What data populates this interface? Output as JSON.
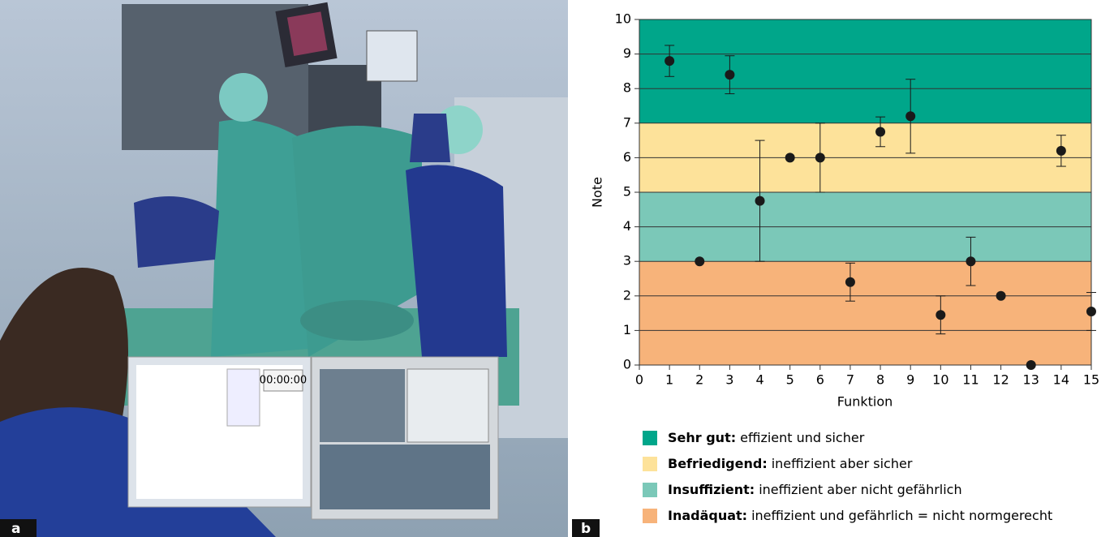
{
  "photo": {
    "panel_label": "a",
    "screen_time": "00:00:00"
  },
  "chart_data": {
    "type": "scatter",
    "panel_label": "b",
    "x_label": "Funktion",
    "y_label": "Note",
    "x": [
      1,
      2,
      3,
      4,
      5,
      6,
      7,
      8,
      9,
      10,
      11,
      12,
      13,
      14,
      15
    ],
    "values": [
      8.8,
      3,
      8.4,
      4.75,
      6,
      6,
      2.4,
      6.75,
      7.2,
      1.45,
      3,
      2,
      0,
      6.2,
      1.55
    ],
    "errors": [
      0.45,
      null,
      0.55,
      1.75,
      null,
      1.0,
      0.55,
      0.43,
      1.07,
      0.55,
      0.7,
      null,
      null,
      0.45,
      0.55
    ],
    "color": "#1a1a1a",
    "xlim": [
      0,
      15
    ],
    "xticks": [
      0,
      1,
      2,
      3,
      4,
      5,
      6,
      7,
      8,
      9,
      10,
      11,
      12,
      13,
      14,
      15
    ],
    "ylim": [
      0,
      10
    ],
    "yticks": [
      0,
      1,
      2,
      3,
      4,
      5,
      6,
      7,
      8,
      9,
      10
    ],
    "grid": true,
    "bands": [
      {
        "from": 7,
        "to": 10,
        "color": "#00a68a",
        "label_bold": "Sehr gut:",
        "label": "effizient und sicher"
      },
      {
        "from": 5,
        "to": 7,
        "color": "#fde29a",
        "label_bold": "Befriedigend:",
        "label": "ineffizient aber sicher"
      },
      {
        "from": 3,
        "to": 5,
        "color": "#7bc8b8",
        "label_bold": "Insuffizient:",
        "label": "ineffizient aber nicht gefährlich"
      },
      {
        "from": 0,
        "to": 3,
        "color": "#f7b37a",
        "label_bold": "Inadäquat:",
        "label": "ineffizient und gefährlich = nicht normgerecht"
      }
    ]
  }
}
